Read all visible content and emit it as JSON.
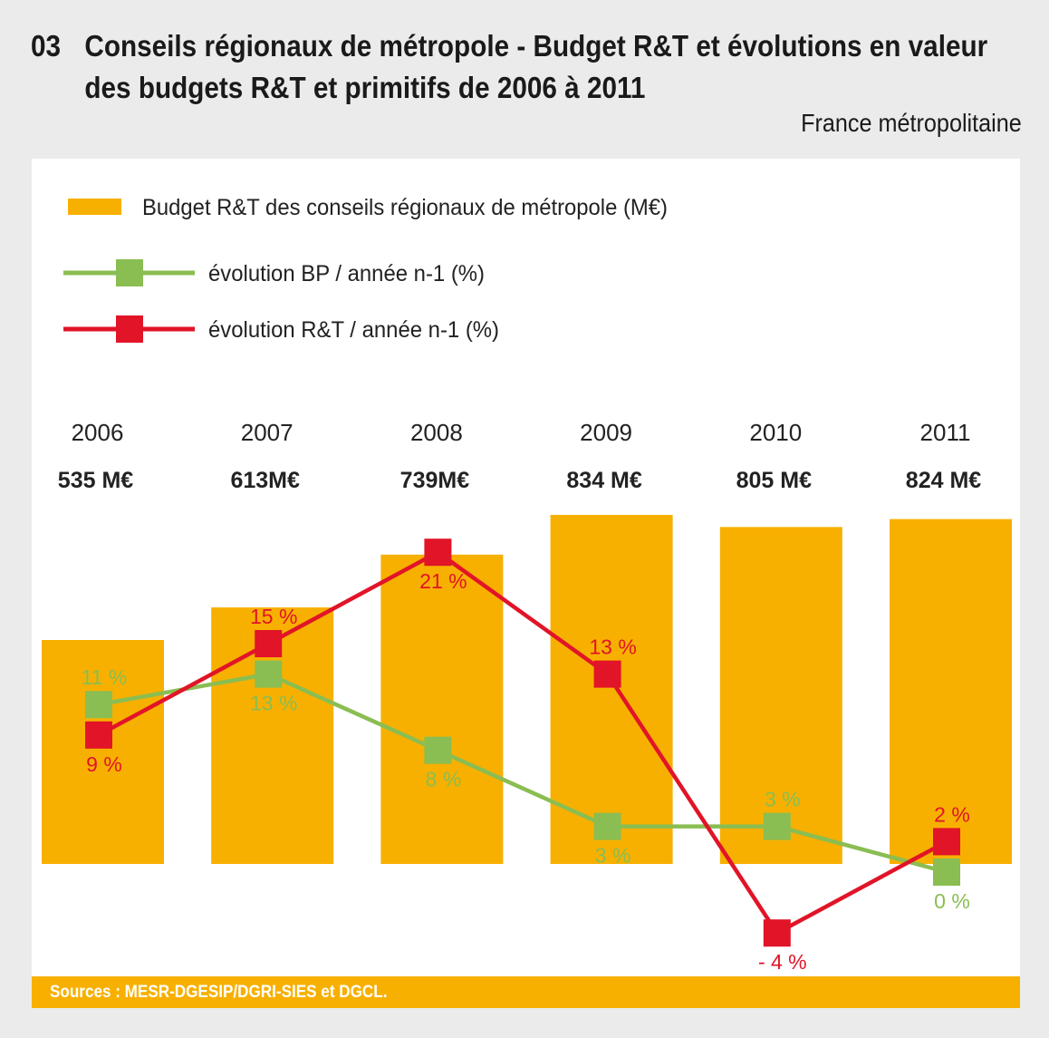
{
  "title": {
    "number": "03",
    "line1": "Conseils régionaux de métropole - Budget R&T et évolutions en valeur",
    "line2": "des budgets R&T et primitifs de 2006 à 2011",
    "subtitle": "France métropolitaine"
  },
  "sources": "Sources : MESR-DGESIP/DGRI-SIES et DGCL.",
  "chart_data": {
    "type": "bar",
    "categories": [
      "2006",
      "2007",
      "2008",
      "2009",
      "2010",
      "2011"
    ],
    "bar_labels": [
      "535 M€",
      "613M€",
      "739M€",
      "834 M€",
      "805 M€",
      "824 M€"
    ],
    "series": [
      {
        "name": "Budget R&T des conseils régionaux de métropole (M€)",
        "type": "bar",
        "color": "#f7b000",
        "values": [
          535,
          613,
          739,
          834,
          805,
          824
        ]
      },
      {
        "name": "évolution BP / année n-1 (%)",
        "type": "line",
        "color": "#8abd52",
        "values": [
          11,
          13,
          8,
          3,
          3,
          0
        ],
        "labels": [
          "11 %",
          "13 %",
          "8 %",
          "3 %",
          "3 %",
          "0 %"
        ],
        "label_pos": [
          "above",
          "below",
          "below",
          "below",
          "above",
          "below"
        ]
      },
      {
        "name": "évolution R&T / année n-1 (%)",
        "type": "line",
        "color": "#e11428",
        "values": [
          9,
          15,
          21,
          13,
          -4,
          2
        ],
        "labels": [
          "9 %",
          "15 %",
          "21 %",
          "13 %",
          "- 4 %",
          "2 %"
        ],
        "label_pos": [
          "below",
          "above",
          "below",
          "above",
          "below",
          "above"
        ]
      }
    ],
    "grid": false,
    "legend": "top-left"
  }
}
